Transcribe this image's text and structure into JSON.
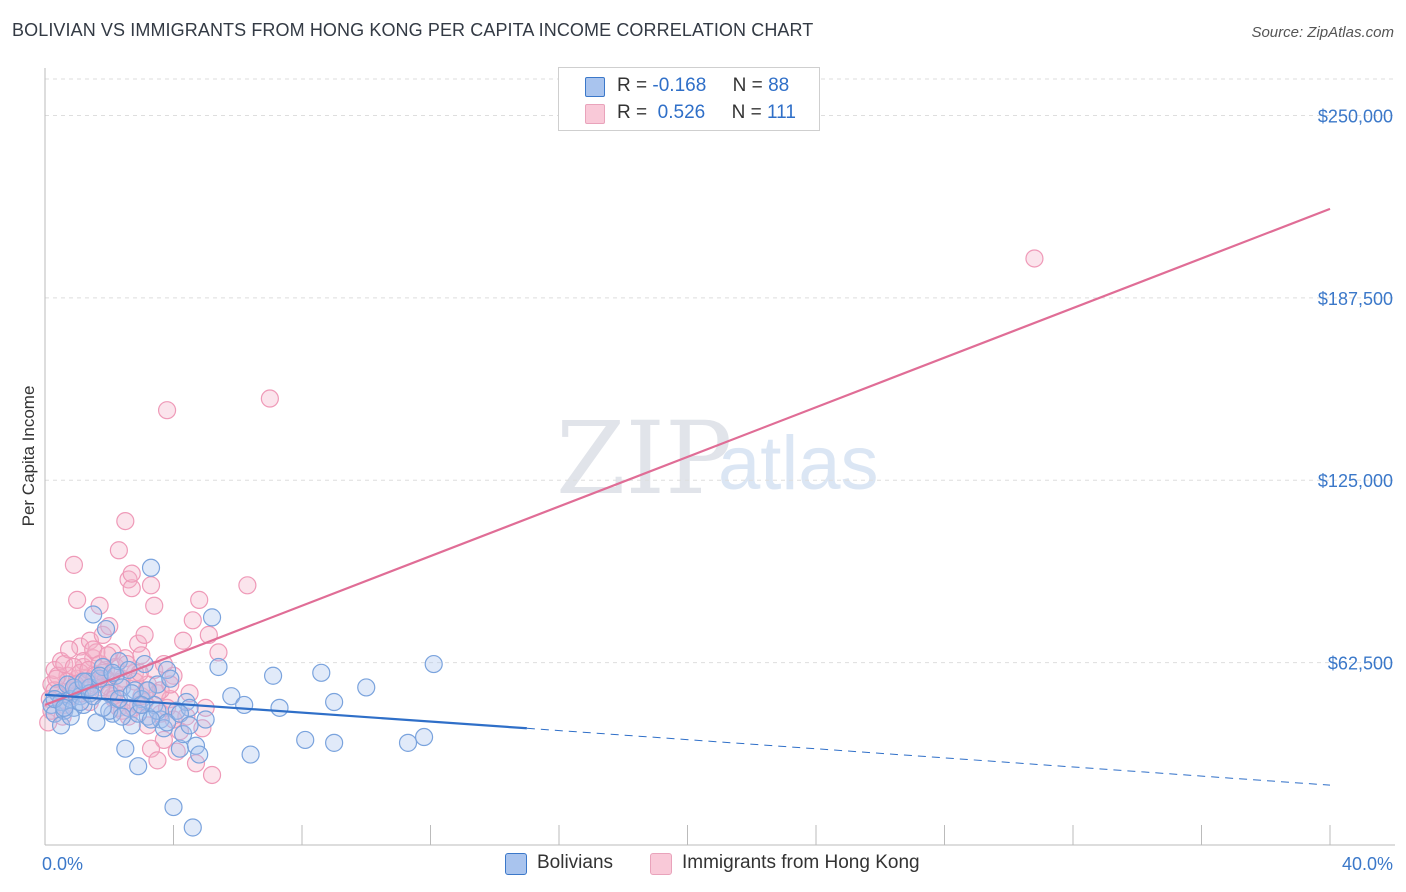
{
  "title": "BOLIVIAN VS IMMIGRANTS FROM HONG KONG PER CAPITA INCOME CORRELATION CHART",
  "source": "Source: ZipAtlas.com",
  "watermark": {
    "zip": "ZIP",
    "atlas": "atlas"
  },
  "colors": {
    "blue": "#3b78c9",
    "blue_fill": "#a9c4ee",
    "pink": "#e06d96",
    "pink_fill": "#f4b3c9",
    "grid": "#dddddd"
  },
  "legend_top": {
    "rows": [
      {
        "r_label": "R =",
        "r_value": "-0.168",
        "n_label": "N =",
        "n_value": "88"
      },
      {
        "r_label": "R =",
        "r_value": " 0.526",
        "n_label": "N =",
        "n_value": "111"
      }
    ]
  },
  "legend_bottom": {
    "blue_label": "Bolivians",
    "pink_label": "Immigrants from Hong Kong"
  },
  "chart_data": {
    "type": "scatter",
    "title": "BOLIVIAN VS IMMIGRANTS FROM HONG KONG PER CAPITA INCOME CORRELATION CHART",
    "xlabel": "",
    "ylabel": "Per Capita Income",
    "xlim": [
      0,
      40
    ],
    "ylim": [
      0,
      262500
    ],
    "x_tick_labels": [
      "0.0%",
      "40.0%"
    ],
    "y_ticks": [
      62500,
      125000,
      187500,
      250000
    ],
    "y_tick_labels": [
      "$62,500",
      "$125,000",
      "$187,500",
      "$250,000"
    ],
    "series": [
      {
        "name": "Bolivians",
        "R": -0.168,
        "N": 88,
        "trend": {
          "x0": 0,
          "y0": 51500,
          "x_solid_end": 15,
          "y_solid_end": 40000,
          "x1": 40,
          "y1": 20500
        },
        "points": [
          [
            0.2,
            48000
          ],
          [
            0.3,
            45000
          ],
          [
            0.4,
            52000
          ],
          [
            0.5,
            49000
          ],
          [
            0.6,
            46000
          ],
          [
            0.7,
            55000
          ],
          [
            0.8,
            50000
          ],
          [
            0.9,
            47000
          ],
          [
            1.0,
            53000
          ],
          [
            1.1,
            51000
          ],
          [
            1.2,
            48000
          ],
          [
            1.3,
            56000
          ],
          [
            1.4,
            54000
          ],
          [
            1.5,
            79000
          ],
          [
            1.6,
            42000
          ],
          [
            1.7,
            57000
          ],
          [
            1.8,
            61000
          ],
          [
            1.9,
            74000
          ],
          [
            2.0,
            52000
          ],
          [
            2.1,
            45000
          ],
          [
            2.2,
            58000
          ],
          [
            2.3,
            63000
          ],
          [
            2.4,
            54000
          ],
          [
            2.5,
            33000
          ],
          [
            2.6,
            47000
          ],
          [
            2.7,
            41000
          ],
          [
            2.8,
            53000
          ],
          [
            2.9,
            27000
          ],
          [
            3.0,
            50000
          ],
          [
            3.1,
            62000
          ],
          [
            3.2,
            44000
          ],
          [
            3.3,
            95000
          ],
          [
            3.4,
            48000
          ],
          [
            3.5,
            55000
          ],
          [
            3.6,
            43000
          ],
          [
            3.7,
            40000
          ],
          [
            3.8,
            60000
          ],
          [
            3.9,
            57000
          ],
          [
            4.0,
            13000
          ],
          [
            4.1,
            46000
          ],
          [
            4.2,
            33000
          ],
          [
            4.3,
            38000
          ],
          [
            4.4,
            49000
          ],
          [
            4.5,
            47000
          ],
          [
            4.6,
            6000
          ],
          [
            4.7,
            34000
          ],
          [
            4.8,
            31000
          ],
          [
            5.0,
            43000
          ],
          [
            5.2,
            78000
          ],
          [
            5.4,
            61000
          ],
          [
            5.8,
            51000
          ],
          [
            6.2,
            48000
          ],
          [
            6.4,
            31000
          ],
          [
            7.1,
            58000
          ],
          [
            7.3,
            47000
          ],
          [
            8.1,
            36000
          ],
          [
            8.6,
            59000
          ],
          [
            9.0,
            35000
          ],
          [
            9.0,
            49000
          ],
          [
            10.0,
            54000
          ],
          [
            11.3,
            35000
          ],
          [
            11.8,
            37000
          ],
          [
            12.1,
            62000
          ],
          [
            0.5,
            41000
          ],
          [
            0.8,
            44000
          ],
          [
            1.1,
            49000
          ],
          [
            1.4,
            52000
          ],
          [
            1.7,
            58000
          ],
          [
            2.0,
            46000
          ],
          [
            2.3,
            50000
          ],
          [
            2.6,
            60000
          ],
          [
            2.9,
            45000
          ],
          [
            3.2,
            53000
          ],
          [
            3.5,
            46000
          ],
          [
            3.8,
            42000
          ],
          [
            4.2,
            45000
          ],
          [
            4.5,
            41000
          ],
          [
            0.3,
            50000
          ],
          [
            0.6,
            47000
          ],
          [
            0.9,
            54000
          ],
          [
            1.2,
            56000
          ],
          [
            1.5,
            51000
          ],
          [
            1.8,
            47000
          ],
          [
            2.1,
            59000
          ],
          [
            2.4,
            44000
          ],
          [
            2.7,
            52000
          ],
          [
            3.0,
            48000
          ],
          [
            3.3,
            43000
          ]
        ]
      },
      {
        "name": "Immigrants from Hong Kong",
        "R": 0.526,
        "N": 111,
        "trend": {
          "x0": 0,
          "y0": 48000,
          "x1": 40,
          "y1": 218000
        },
        "points": [
          [
            0.1,
            42000
          ],
          [
            0.2,
            55000
          ],
          [
            0.3,
            60000
          ],
          [
            0.4,
            52000
          ],
          [
            0.5,
            63000
          ],
          [
            0.6,
            48000
          ],
          [
            0.7,
            58000
          ],
          [
            0.8,
            53000
          ],
          [
            0.9,
            96000
          ],
          [
            1.0,
            84000
          ],
          [
            1.1,
            68000
          ],
          [
            1.2,
            61000
          ],
          [
            1.3,
            57000
          ],
          [
            1.4,
            70000
          ],
          [
            1.5,
            64000
          ],
          [
            1.6,
            55000
          ],
          [
            1.7,
            82000
          ],
          [
            1.8,
            72000
          ],
          [
            1.9,
            60000
          ],
          [
            2.0,
            75000
          ],
          [
            2.1,
            66000
          ],
          [
            2.2,
            52000
          ],
          [
            2.3,
            47000
          ],
          [
            2.4,
            57000
          ],
          [
            2.5,
            111000
          ],
          [
            2.6,
            91000
          ],
          [
            2.7,
            88000
          ],
          [
            2.8,
            59000
          ],
          [
            2.9,
            69000
          ],
          [
            3.0,
            65000
          ],
          [
            3.1,
            49000
          ],
          [
            3.2,
            55000
          ],
          [
            3.3,
            89000
          ],
          [
            3.4,
            82000
          ],
          [
            3.5,
            52000
          ],
          [
            3.6,
            45000
          ],
          [
            3.7,
            36000
          ],
          [
            3.8,
            149000
          ],
          [
            3.9,
            50000
          ],
          [
            4.0,
            58000
          ],
          [
            4.2,
            39000
          ],
          [
            4.4,
            44000
          ],
          [
            4.6,
            77000
          ],
          [
            4.8,
            84000
          ],
          [
            5.0,
            47000
          ],
          [
            5.2,
            24000
          ],
          [
            5.4,
            66000
          ],
          [
            6.3,
            89000
          ],
          [
            7.0,
            153000
          ],
          [
            30.8,
            201000
          ],
          [
            0.2,
            46000
          ],
          [
            0.4,
            58000
          ],
          [
            0.6,
            62000
          ],
          [
            0.8,
            51000
          ],
          [
            1.0,
            57000
          ],
          [
            1.2,
            63000
          ],
          [
            1.4,
            49000
          ],
          [
            1.6,
            66000
          ],
          [
            1.8,
            59000
          ],
          [
            2.0,
            54000
          ],
          [
            2.2,
            61000
          ],
          [
            2.4,
            46000
          ],
          [
            2.6,
            44000
          ],
          [
            2.8,
            56000
          ],
          [
            3.0,
            51000
          ],
          [
            3.2,
            41000
          ],
          [
            3.4,
            60000
          ],
          [
            3.6,
            53000
          ],
          [
            3.8,
            47000
          ],
          [
            4.0,
            43000
          ],
          [
            4.3,
            70000
          ],
          [
            4.5,
            52000
          ],
          [
            4.7,
            28000
          ],
          [
            4.9,
            40000
          ],
          [
            5.1,
            72000
          ],
          [
            0.3,
            53000
          ],
          [
            0.5,
            49000
          ],
          [
            0.7,
            56000
          ],
          [
            0.9,
            61000
          ],
          [
            1.1,
            59000
          ],
          [
            1.3,
            53000
          ],
          [
            1.5,
            67000
          ],
          [
            1.7,
            62000
          ],
          [
            1.9,
            57000
          ],
          [
            2.1,
            51000
          ],
          [
            2.3,
            101000
          ],
          [
            2.5,
            64000
          ],
          [
            2.7,
            93000
          ],
          [
            2.9,
            48000
          ],
          [
            3.1,
            72000
          ],
          [
            3.3,
            33000
          ],
          [
            3.5,
            29000
          ],
          [
            3.7,
            62000
          ],
          [
            3.9,
            55000
          ],
          [
            0.15,
            50000
          ],
          [
            0.35,
            57000
          ],
          [
            0.55,
            44000
          ],
          [
            0.75,
            67000
          ],
          [
            0.95,
            55000
          ],
          [
            1.15,
            52000
          ],
          [
            1.35,
            60000
          ],
          [
            1.55,
            58000
          ],
          [
            1.75,
            54000
          ],
          [
            1.95,
            65000
          ],
          [
            2.15,
            50000
          ],
          [
            2.35,
            56000
          ],
          [
            2.55,
            62000
          ],
          [
            2.75,
            47000
          ],
          [
            2.95,
            59000
          ],
          [
            3.15,
            53000
          ],
          [
            4.1,
            32000
          ]
        ]
      }
    ]
  }
}
